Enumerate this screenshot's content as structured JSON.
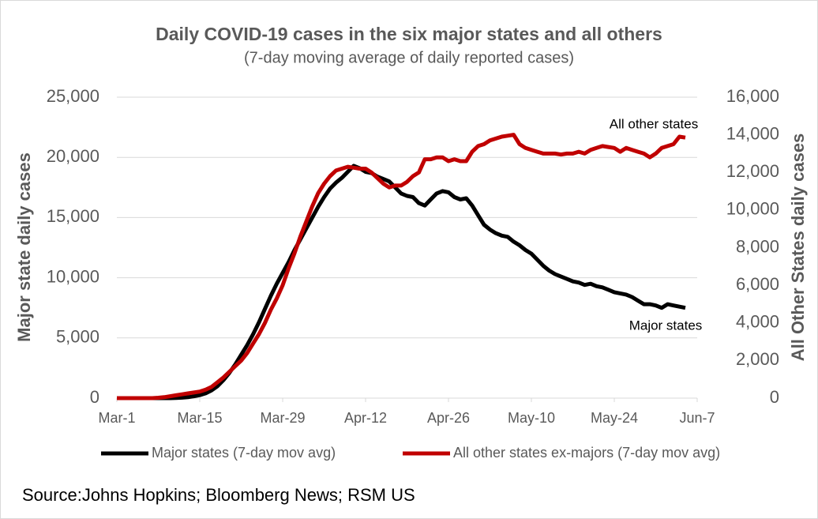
{
  "chart_data": {
    "type": "line",
    "title": "Daily COVID-19 cases in the six major states and all others",
    "subtitle": "(7-day moving average of daily reported cases)",
    "y_label": "Major state daily cases",
    "y2_label": "All Other States daily cases",
    "source": "Source:Johns Hopkins; Bloomberg News; RSM US",
    "annotations": [
      "All other states",
      "Major states"
    ],
    "categories": [
      "Mar-1",
      null,
      null,
      null,
      null,
      null,
      null,
      null,
      null,
      null,
      null,
      null,
      null,
      null,
      "Mar-15",
      null,
      null,
      null,
      null,
      null,
      null,
      null,
      null,
      null,
      null,
      null,
      null,
      null,
      "Mar-29",
      null,
      null,
      null,
      null,
      null,
      null,
      null,
      null,
      null,
      null,
      null,
      null,
      null,
      "Apr-12",
      null,
      null,
      null,
      null,
      null,
      null,
      null,
      null,
      null,
      null,
      null,
      null,
      null,
      "Apr-26",
      null,
      null,
      null,
      null,
      null,
      null,
      null,
      null,
      null,
      null,
      null,
      null,
      null,
      "May-10",
      null,
      null,
      null,
      null,
      null,
      null,
      null,
      null,
      null,
      null,
      null,
      null,
      null,
      "May-24",
      null,
      null,
      null,
      null,
      null,
      null,
      null,
      null,
      null,
      null,
      null,
      null,
      null,
      "Jun-7"
    ],
    "series": [
      {
        "name": "Major states (7-day mov avg)",
        "color": "#000000",
        "values": [
          0,
          0,
          0,
          0,
          0,
          0,
          0,
          0,
          0,
          0,
          20,
          40,
          80,
          150,
          250,
          400,
          650,
          1000,
          1500,
          2100,
          2800,
          3600,
          4400,
          5300,
          6300,
          7400,
          8500,
          9500,
          10400,
          11300,
          12300,
          13200,
          14100,
          15000,
          15900,
          16700,
          17400,
          17900,
          18300,
          18800,
          19300,
          19100,
          18800,
          18700,
          18400,
          18200,
          18000,
          17500,
          17000,
          16800,
          16700,
          16200,
          16000,
          16500,
          17000,
          17200,
          17100,
          16700,
          16500,
          16600,
          16000,
          15200,
          14400,
          14000,
          13700,
          13500,
          13400,
          13000,
          12700,
          12300,
          12000,
          11500,
          11000,
          10600,
          10300,
          10100,
          9900,
          9700,
          9600,
          9400,
          9500,
          9300,
          9200,
          9000,
          8800,
          8700,
          8600,
          8400,
          8100,
          7800,
          7800,
          7700,
          7500,
          7800,
          7700,
          7600,
          7500,
          null,
          null
        ]
      },
      {
        "name": "All other states ex-majors (7-day mov avg)",
        "color": "#c00000",
        "axis": "y2",
        "values": [
          0,
          0,
          0,
          0,
          0,
          0,
          0,
          20,
          50,
          100,
          150,
          200,
          250,
          300,
          350,
          450,
          600,
          850,
          1100,
          1400,
          1700,
          2000,
          2400,
          2900,
          3400,
          4000,
          4700,
          5300,
          6000,
          6900,
          7700,
          8600,
          9400,
          10200,
          10900,
          11400,
          11800,
          12100,
          12200,
          12300,
          12250,
          12200,
          12200,
          12000,
          11700,
          11400,
          11200,
          11300,
          11300,
          11500,
          11800,
          12000,
          12700,
          12700,
          12800,
          12800,
          12600,
          12700,
          12600,
          12600,
          13100,
          13400,
          13500,
          13700,
          13800,
          13900,
          13950,
          14000,
          13500,
          13300,
          13200,
          13100,
          13000,
          13000,
          13000,
          12950,
          13000,
          13000,
          13100,
          13000,
          13200,
          13300,
          13400,
          13350,
          13300,
          13100,
          13300,
          13200,
          13100,
          13000,
          12800,
          13000,
          13300,
          13400,
          13500,
          13900,
          13850,
          null,
          null
        ]
      }
    ],
    "ylim": [
      0,
      25000
    ],
    "yticks": [
      0,
      {
        "value": 5000,
        "label": "5,000"
      },
      {
        "value": 10000,
        "label": "10,000"
      },
      {
        "value": 15000,
        "label": "15,000"
      },
      {
        "value": 20000,
        "label": "20,000"
      },
      {
        "value": 25000,
        "label": "25,000"
      }
    ],
    "y2lim": [
      0,
      16000
    ],
    "y2ticks": [
      0,
      {
        "value": 2000,
        "label": "2,000"
      },
      {
        "value": 4000,
        "label": "4,000"
      },
      {
        "value": 6000,
        "label": "6,000"
      },
      {
        "value": 8000,
        "label": "8,000"
      },
      {
        "value": 10000,
        "label": "10,000"
      },
      {
        "value": 12000,
        "label": "12,000"
      },
      {
        "value": 14000,
        "label": "14,000"
      },
      {
        "value": 16000,
        "label": "16,000"
      }
    ],
    "grid": true,
    "legend": "bottom"
  }
}
